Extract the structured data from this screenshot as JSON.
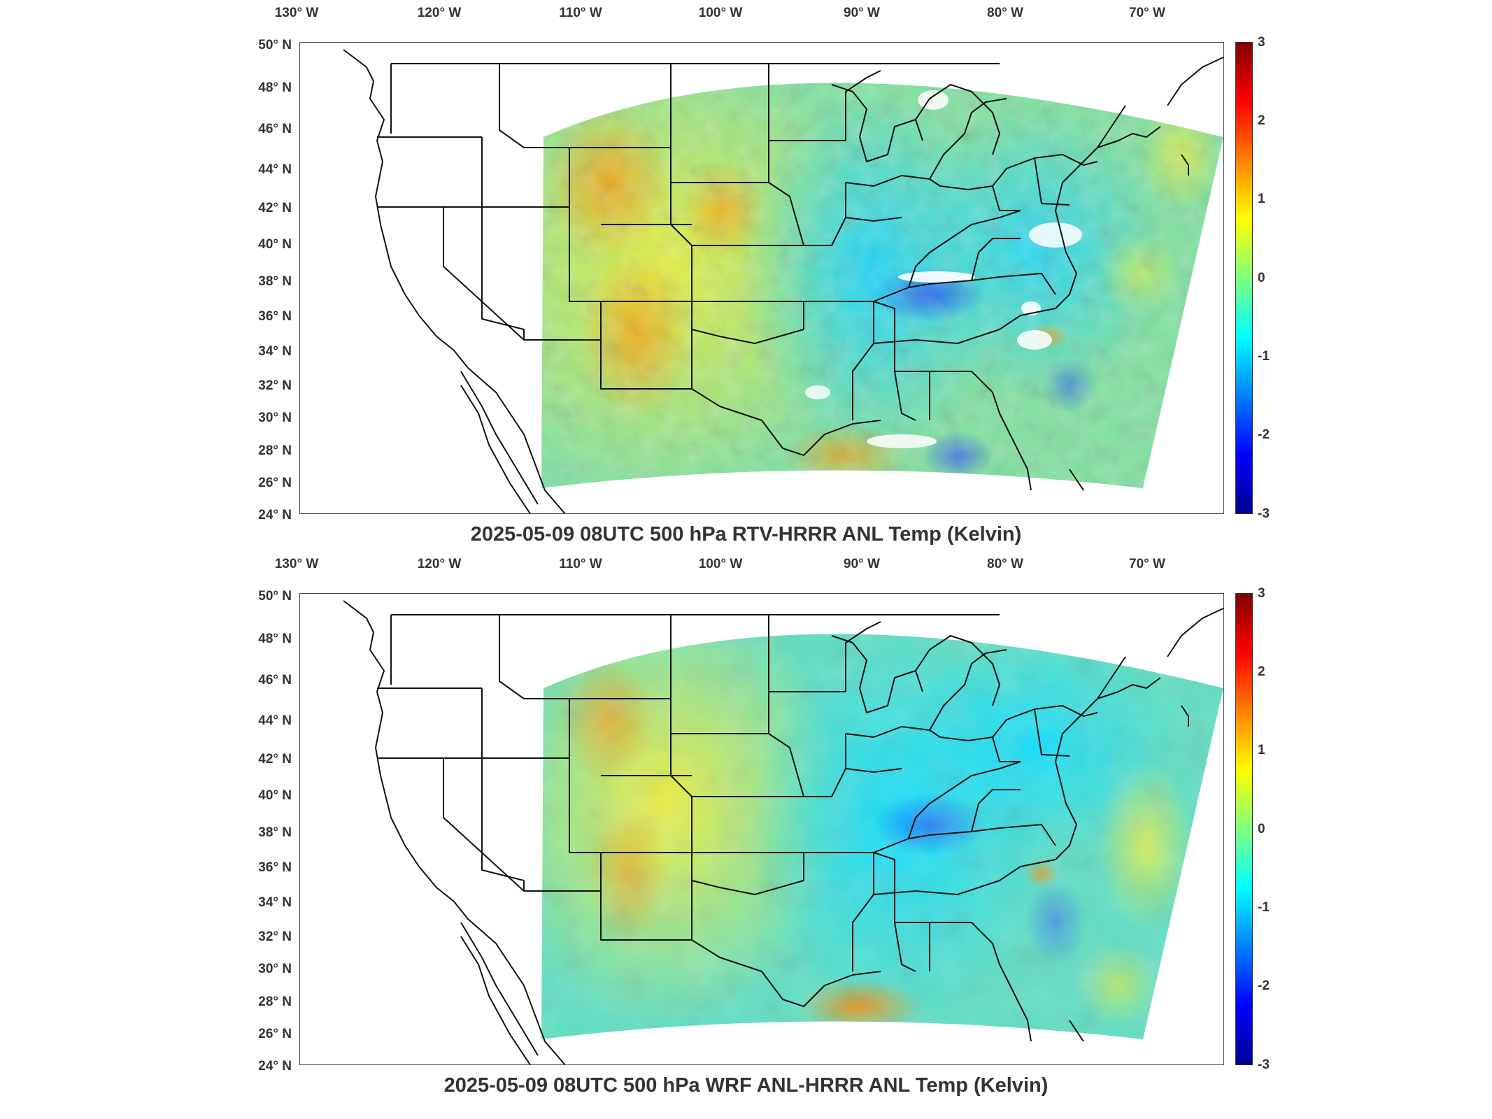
{
  "lon_labels": [
    "130° W",
    "120° W",
    "110° W",
    "100° W",
    "90° W",
    "80° W",
    "70° W"
  ],
  "lat_labels": [
    "50° N",
    "48° N",
    "46° N",
    "44° N",
    "42° N",
    "40° N",
    "38° N",
    "36° N",
    "34° N",
    "32° N",
    "30° N",
    "28° N",
    "26° N",
    "24° N"
  ],
  "colorbar": {
    "min": -3,
    "max": 3,
    "ticks": [
      "3",
      "2",
      "1",
      "0",
      "-1",
      "-2",
      "-3"
    ],
    "colormap": "jet"
  },
  "panels": [
    {
      "title": "2025-05-09 08UTC 500 hPa RTV-HRRR ANL Temp (Kelvin)"
    },
    {
      "title": "2025-05-09 08UTC 500 hPa WRF ANL-HRRR ANL Temp (Kelvin)"
    }
  ],
  "colors": {
    "border": "#111111",
    "background": "#ffffff"
  }
}
